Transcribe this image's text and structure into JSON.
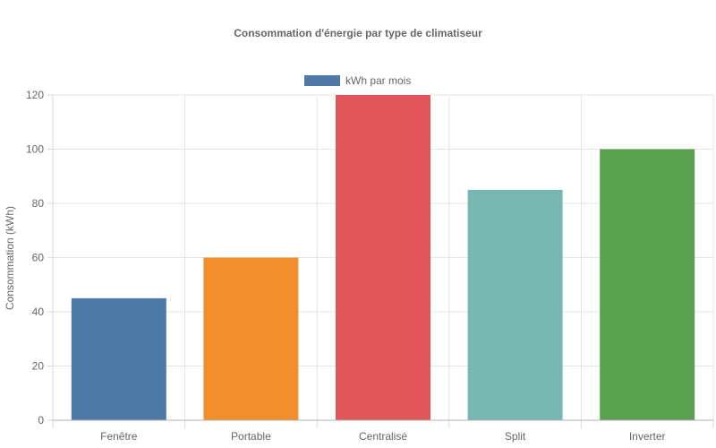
{
  "chart_data": {
    "type": "bar",
    "title": "Consommation d'énergie par type de climatiseur",
    "xlabel": "",
    "ylabel": "Consommation (kWh)",
    "categories": [
      "Fenêtre",
      "Portable",
      "Centralisé",
      "Split",
      "Inverter"
    ],
    "series": [
      {
        "name": "kWh par mois",
        "values": [
          45,
          60,
          120,
          85,
          100
        ],
        "colors": [
          "#4e79a7",
          "#f28e2b",
          "#e15759",
          "#76b7b2",
          "#59a14f"
        ]
      }
    ],
    "ylim": [
      0,
      120
    ],
    "yticks": [
      "0",
      "20",
      "40",
      "60",
      "80",
      "100",
      "120"
    ],
    "grid": true,
    "legend_position": "top-center",
    "legend_color": "#4e79a7"
  }
}
